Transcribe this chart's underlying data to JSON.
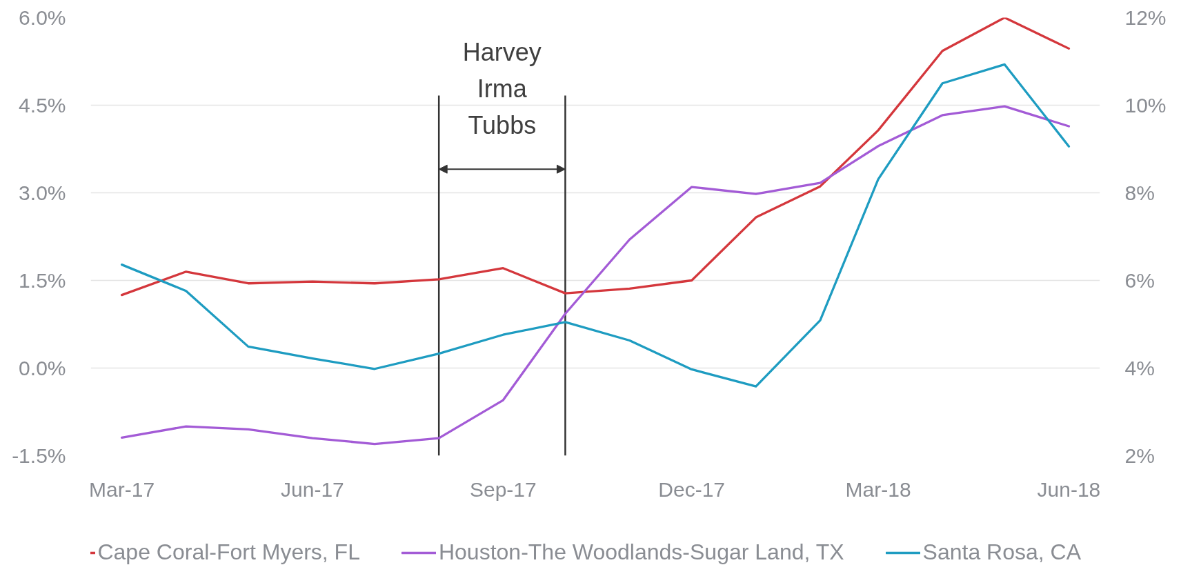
{
  "chart_data": {
    "type": "line",
    "x": [
      "2017-03",
      "2017-04",
      "2017-05",
      "2017-06",
      "2017-07",
      "2017-08",
      "2017-09",
      "2017-10",
      "2017-11",
      "2017-12",
      "2018-01",
      "2018-02",
      "2018-03",
      "2018-04",
      "2018-05",
      "2018-06"
    ],
    "xlim": [
      "2017-02-14",
      "2018-06-16"
    ],
    "xticks": [
      {
        "value": "2017-03",
        "label": "Mar-17"
      },
      {
        "value": "2017-06",
        "label": "Jun-17"
      },
      {
        "value": "2017-09",
        "label": "Sep-17"
      },
      {
        "value": "2017-12",
        "label": "Dec-17"
      },
      {
        "value": "2018-03",
        "label": "Mar-18"
      },
      {
        "value": "2018-06",
        "label": "Jun-18"
      }
    ],
    "ylim": [
      -1.5,
      6.0
    ],
    "yticks": [
      {
        "value": -1.5,
        "label": "-1.5%"
      },
      {
        "value": 0,
        "label": "0.0%"
      },
      {
        "value": 1.5,
        "label": "1.5%"
      },
      {
        "value": 3.0,
        "label": "3.0%"
      },
      {
        "value": 4.5,
        "label": "4.5%"
      },
      {
        "value": 6.0,
        "label": "6.0%"
      }
    ],
    "y2lim": [
      2,
      12
    ],
    "y2ticks": [
      {
        "value": 2,
        "label": "2%"
      },
      {
        "value": 4,
        "label": "4%"
      },
      {
        "value": 6,
        "label": "6%"
      },
      {
        "value": 8,
        "label": "8%"
      },
      {
        "value": 10,
        "label": "10%"
      },
      {
        "value": 12,
        "label": "12%"
      }
    ],
    "series": [
      {
        "name": "Cape Coral-Fort Myers, FL",
        "color": "#d4373c",
        "values": [
          1.25,
          1.65,
          1.45,
          1.48,
          1.45,
          1.52,
          1.71,
          1.28,
          1.36,
          1.5,
          2.58,
          3.11,
          4.07,
          5.43,
          6.0,
          5.47
        ]
      },
      {
        "name": "Houston-The Woodlands-Sugar Land, TX",
        "color": "#a35bd6",
        "values": [
          -1.19,
          -1.0,
          -1.05,
          -1.2,
          -1.3,
          -1.2,
          -0.55,
          0.93,
          2.2,
          3.1,
          2.98,
          3.17,
          3.8,
          4.33,
          4.48,
          4.14
        ]
      },
      {
        "name": "Santa Rosa, CA",
        "color": "#1e9cc1",
        "axis": "y2",
        "values": [
          6.36,
          5.76,
          4.49,
          4.22,
          3.98,
          4.33,
          4.76,
          5.05,
          4.63,
          3.97,
          3.58,
          5.09,
          8.31,
          10.5,
          10.93,
          9.06
        ]
      }
    ],
    "ref_lines": [
      {
        "axis": "x",
        "value": "2017-08",
        "color": "#333333"
      },
      {
        "axis": "x",
        "value": "2017-10",
        "color": "#333333"
      }
    ],
    "annotations": [
      "Harvey\nIrma\nTubbs"
    ],
    "grid": "y",
    "legend": "bottom",
    "line_style": "solid"
  }
}
